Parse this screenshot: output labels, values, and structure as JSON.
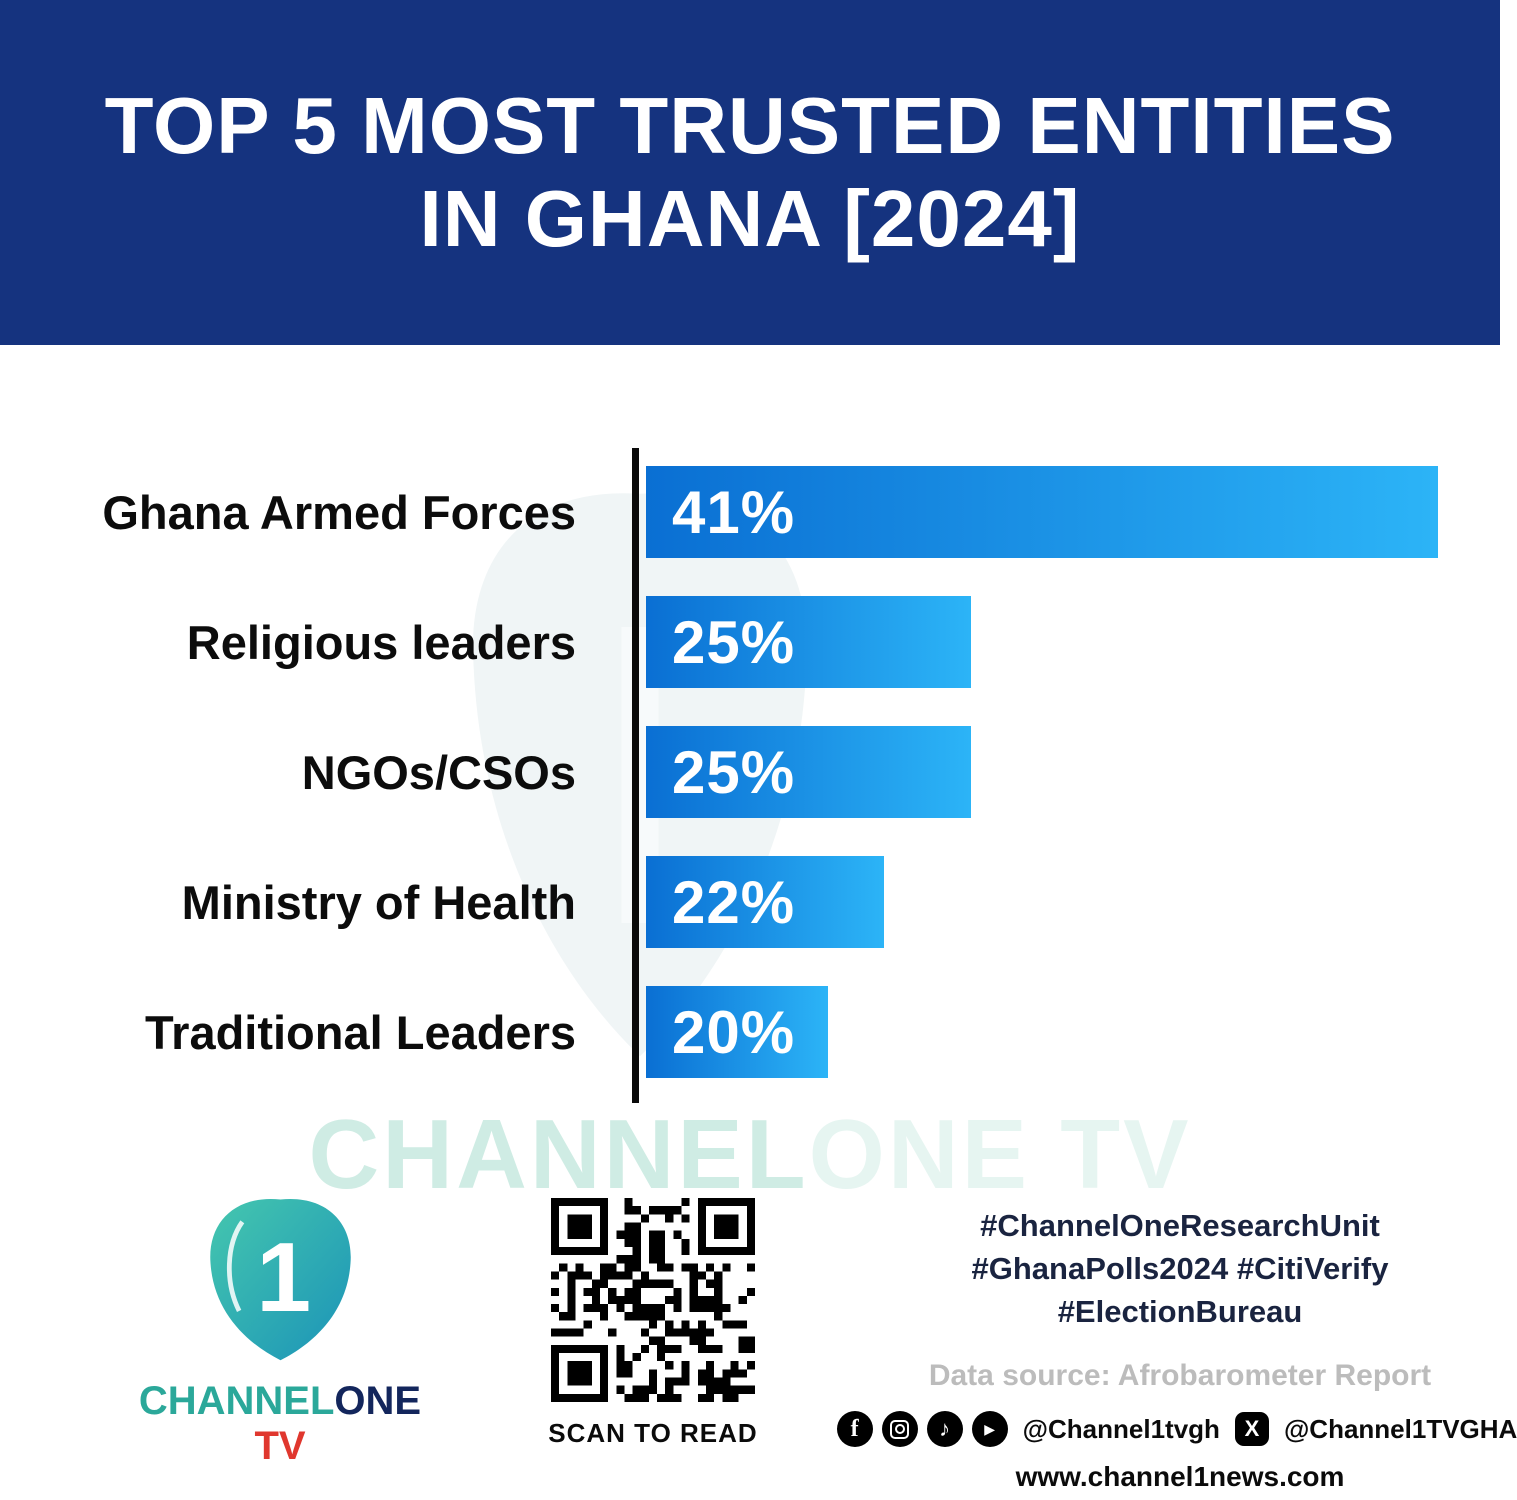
{
  "header": {
    "title_line1": "TOP 5 MOST TRUSTED ENTITIES",
    "title_line2": "IN GHANA [2024]"
  },
  "chart_data": {
    "type": "bar",
    "orientation": "horizontal",
    "title": "Top 5 Most Trusted Entities in Ghana [2024]",
    "categories": [
      "Ghana Armed Forces",
      "Religious leaders",
      "NGOs/CSOs",
      "Ministry of Health",
      "Traditional Leaders"
    ],
    "values": [
      41,
      25,
      25,
      22,
      20
    ],
    "rows": [
      {
        "label": "Ghana Armed Forces",
        "value": 41,
        "value_label": "41%",
        "bar_width_pct": 100
      },
      {
        "label": "Religious leaders",
        "value": 25,
        "value_label": "25%",
        "bar_width_pct": 41
      },
      {
        "label": "NGOs/CSOs",
        "value": 25,
        "value_label": "25%",
        "bar_width_pct": 41
      },
      {
        "label": "Ministry of Health",
        "value": 22,
        "value_label": "22%",
        "bar_width_pct": 30
      },
      {
        "label": "Traditional Leaders",
        "value": 20,
        "value_label": "20%",
        "bar_width_pct": 23
      }
    ],
    "legend": "none",
    "grid": false,
    "layout_hints": {
      "bars_not_to_linear_scale": true,
      "bar_color_start": "#0a6fd3",
      "bar_color_end": "#2cb4f7",
      "axis_color": "#0a0a0a"
    }
  },
  "watermark": {
    "part1": "CHANNEL",
    "part2": "ONE TV"
  },
  "footer": {
    "logo_digit": "1",
    "brand_channel": "CHANNEL",
    "brand_one": "ONE",
    "brand_tv": " TV",
    "qr_caption": "SCAN TO READ",
    "hashtags_line1": "#ChannelOneResearchUnit",
    "hashtags_line2": "#GhanaPolls2024 #CitiVerify",
    "hashtags_line3": "#ElectionBureau",
    "data_source": "Data source: Afrobarometer Report",
    "social_handle1": "@Channel1tvgh",
    "social_handle2": "@Channel1TVGHA",
    "website": "www.channel1news.com",
    "icons": [
      "facebook-icon",
      "instagram-icon",
      "tiktok-icon",
      "youtube-icon",
      "x-icon"
    ]
  },
  "colors": {
    "header_bg": "#15337f",
    "accent_teal": "#2ba89a",
    "brand_red": "#e0372e",
    "text_dark": "#0c0c0c",
    "muted_gray": "#bcbcbc",
    "hashtag_navy": "#1a2440"
  }
}
